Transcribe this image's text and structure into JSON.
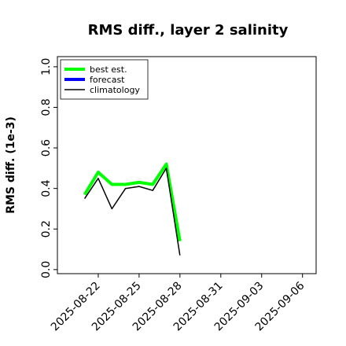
{
  "chart_data": {
    "type": "line",
    "title": "RMS diff., layer 2 salinity",
    "ylabel": "RMS diff. (1e-3)",
    "xlabel": "",
    "ylim": [
      -0.02,
      1.05
    ],
    "yticks": [
      "0.0",
      "0.2",
      "0.4",
      "0.6",
      "0.8",
      "1.0"
    ],
    "yticks_values": [
      0.0,
      0.2,
      0.4,
      0.6,
      0.8,
      1.0
    ],
    "xlim": [
      "2025-08-19",
      "2025-09-07"
    ],
    "xticks": [
      "2025-08-22",
      "2025-08-25",
      "2025-08-28",
      "2025-08-31",
      "2025-09-03",
      "2025-09-06"
    ],
    "highlighted_xtick": "2025-08-28",
    "highlight_color": "#228b22",
    "legend_position": "top-left",
    "series": [
      {
        "name": "best est.",
        "color": "#00ff00",
        "x": [
          "2025-08-21",
          "2025-08-22",
          "2025-08-23",
          "2025-08-24",
          "2025-08-25",
          "2025-08-26",
          "2025-08-27",
          "2025-08-28"
        ],
        "values": [
          0.37,
          0.48,
          0.42,
          0.42,
          0.43,
          0.42,
          0.52,
          0.14
        ]
      },
      {
        "name": "forecast",
        "color": "#0000ff",
        "x": [],
        "values": []
      },
      {
        "name": "climatology",
        "color": "#000000",
        "x": [
          "2025-08-21",
          "2025-08-22",
          "2025-08-23",
          "2025-08-24",
          "2025-08-25",
          "2025-08-26",
          "2025-08-27",
          "2025-08-28"
        ],
        "values": [
          0.35,
          0.45,
          0.3,
          0.4,
          0.41,
          0.39,
          0.5,
          0.07
        ]
      }
    ]
  }
}
